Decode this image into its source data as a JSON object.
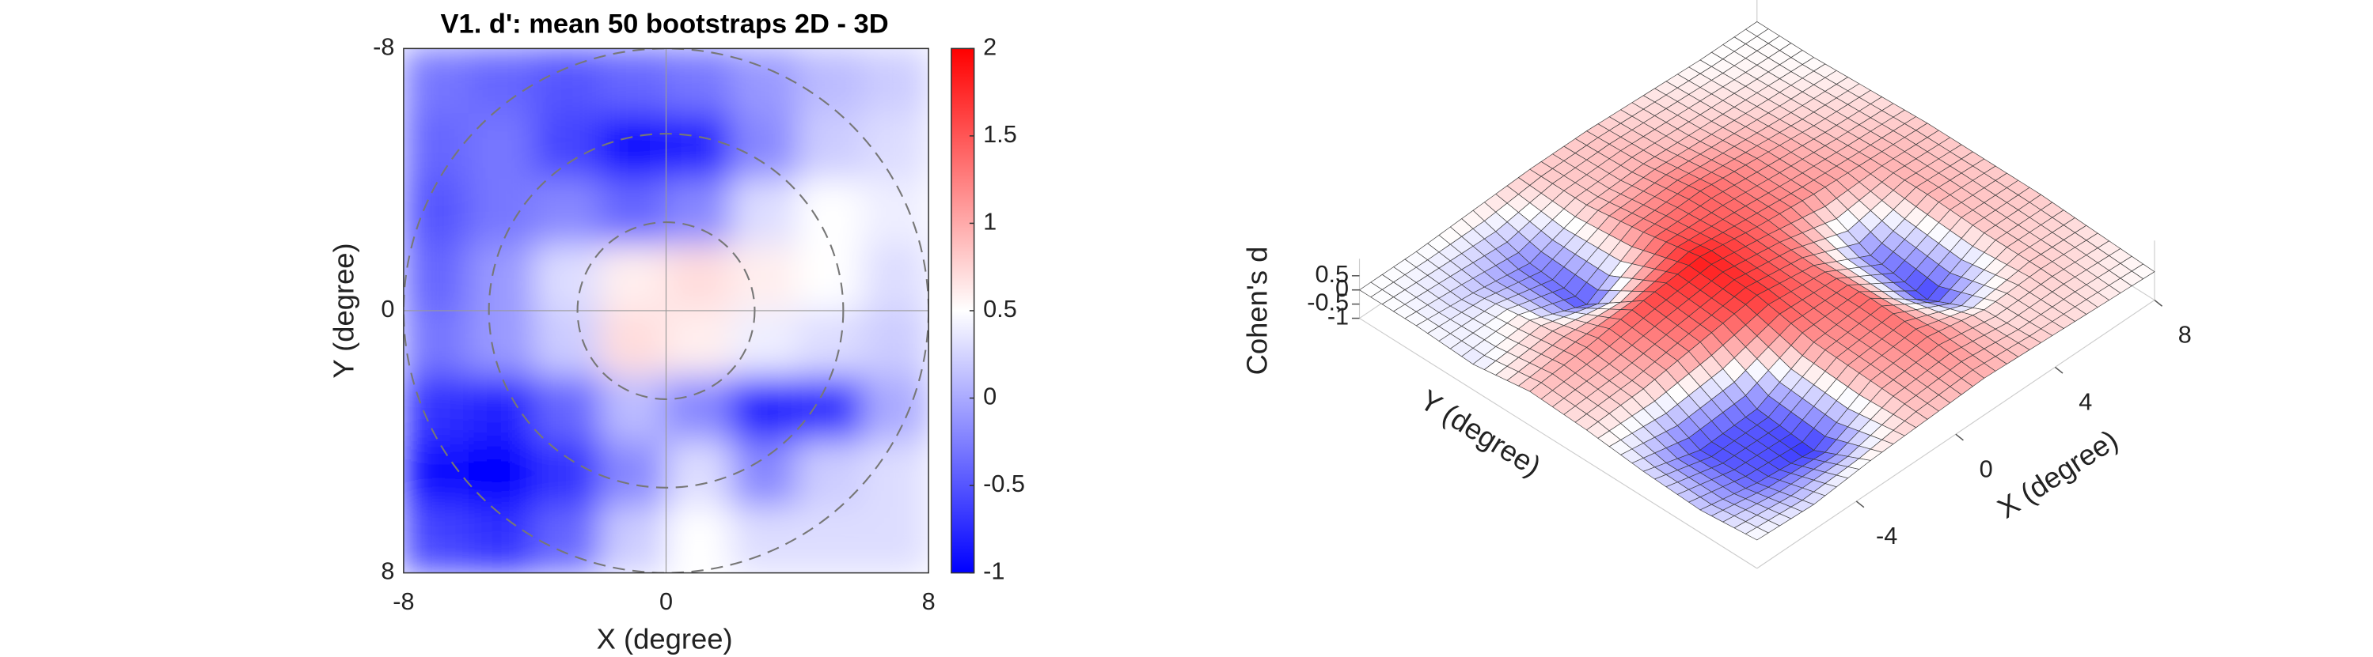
{
  "chart_data": [
    {
      "type": "heatmap",
      "title": "V1. d': mean 50 bootstraps 2D - 3D",
      "x_label": "X (degree)",
      "y_label": "Y (degree)",
      "xlim": [
        -8,
        8
      ],
      "ylim": [
        -8,
        8
      ],
      "xticks": [
        -8,
        0,
        8
      ],
      "yticks": [
        -8,
        0,
        8
      ],
      "grid": true,
      "rings": [
        2.7,
        5.4,
        8
      ],
      "z": [
        [
          -0.3,
          -0.4,
          -0.5,
          -0.4,
          -0.3,
          -0.1,
          0.1,
          0.2
        ],
        [
          -0.4,
          -0.3,
          -0.6,
          -0.9,
          -0.8,
          -0.2,
          0.2,
          0.3
        ],
        [
          -0.5,
          -0.3,
          -0.2,
          -0.4,
          -0.2,
          0.3,
          0.5,
          0.4
        ],
        [
          -0.4,
          -0.1,
          0.3,
          0.6,
          0.7,
          0.6,
          0.5,
          0.3
        ],
        [
          -0.3,
          -0.1,
          0.2,
          0.7,
          0.6,
          0.4,
          0.3,
          0.2
        ],
        [
          -0.7,
          -0.8,
          -0.4,
          0.1,
          -0.2,
          -0.8,
          -0.7,
          0.0
        ],
        [
          -0.9,
          -1.0,
          -0.7,
          -0.2,
          0.3,
          -0.2,
          0.2,
          0.3
        ],
        [
          -0.6,
          -0.7,
          -0.4,
          0.2,
          0.5,
          0.3,
          0.3,
          0.3
        ]
      ],
      "clim": [
        -1,
        2
      ],
      "colorbar_ticks": [
        -1,
        -0.5,
        0,
        0.5,
        1,
        1.5,
        2
      ],
      "colors": [
        "#0000ff",
        "#ffffff",
        "#ff0000"
      ]
    },
    {
      "type": "surface3d",
      "x_label": "X (degree)",
      "y_label": "Y (degree)",
      "z_label": "Cohen's d",
      "xlim": [
        -8,
        8
      ],
      "ylim": [
        -8,
        8
      ],
      "zlim": [
        -1,
        0.5
      ],
      "xticks": [
        -4,
        0,
        4,
        8
      ],
      "zticks": [
        -1,
        -0.5,
        0,
        0.5
      ],
      "z": [
        [
          0,
          -0.1,
          0.1,
          0.2,
          0.3,
          0.2,
          0.1,
          0
        ],
        [
          -0.2,
          -0.6,
          -0.8,
          0.3,
          0.5,
          0.1,
          0.2,
          0.1
        ],
        [
          -0.1,
          -0.7,
          -0.6,
          0.4,
          0.6,
          -0.8,
          0.2,
          0.2
        ],
        [
          0.1,
          0.2,
          0.5,
          0.8,
          0.5,
          -0.5,
          0.3,
          0.2
        ],
        [
          0.2,
          0.4,
          0.7,
          0.9,
          0.6,
          0.4,
          0.3,
          0.2
        ],
        [
          -0.1,
          0.1,
          -0.7,
          0.5,
          0.6,
          0.4,
          0.2,
          0.1
        ],
        [
          0,
          -0.2,
          -0.5,
          0.2,
          0.3,
          0.2,
          0.1,
          0
        ],
        [
          0,
          0,
          0.1,
          0.2,
          0.2,
          0.1,
          0,
          0
        ]
      ],
      "clim": [
        -1,
        1
      ],
      "colors": [
        "#0000ff",
        "#ffffff",
        "#ff0000"
      ]
    }
  ]
}
